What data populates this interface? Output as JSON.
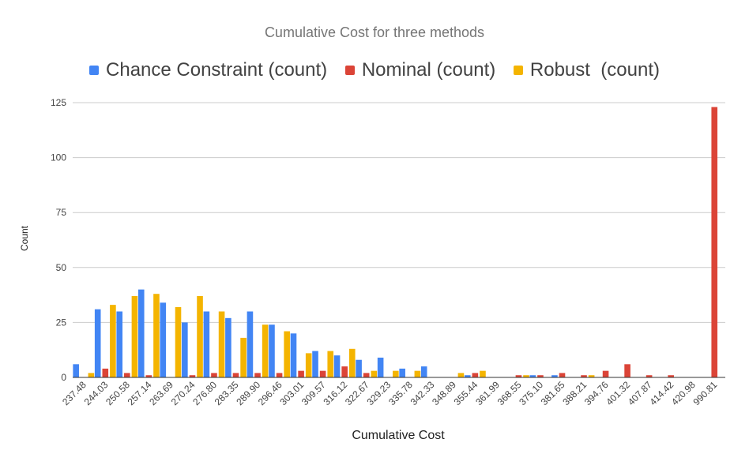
{
  "chart_data": {
    "type": "bar",
    "title": "Cumulative Cost for three methods",
    "xlabel": "Cumulative Cost",
    "ylabel": "Count",
    "ylim": [
      0,
      125
    ],
    "yticks": [
      0,
      25,
      50,
      75,
      100,
      125
    ],
    "grid": true,
    "legend_position": "top",
    "categories": [
      "237.48",
      "244.03",
      "250.58",
      "257.14",
      "263.69",
      "270.24",
      "276.80",
      "283.35",
      "289.90",
      "296.46",
      "303.01",
      "309.57",
      "316.12",
      "322.67",
      "329.23",
      "335.78",
      "342.33",
      "348.89",
      "355.44",
      "361.99",
      "368.55",
      "375.10",
      "381.65",
      "388.21",
      "394.76",
      "401.32",
      "407.87",
      "414.42",
      "420.98",
      "990.81"
    ],
    "series": [
      {
        "name": "Chance Constraint (count)",
        "color": "#4285f4",
        "values": [
          6,
          31,
          30,
          40,
          34,
          25,
          30,
          27,
          30,
          24,
          20,
          12,
          10,
          8,
          9,
          4,
          5,
          0,
          1,
          0,
          0,
          1,
          1,
          0,
          0,
          0,
          0,
          0,
          0,
          0
        ]
      },
      {
        "name": "Nominal (count)",
        "color": "#db4437",
        "values": [
          0,
          4,
          2,
          1,
          0,
          1,
          2,
          2,
          2,
          2,
          3,
          3,
          5,
          2,
          0,
          0,
          0,
          0,
          2,
          0,
          1,
          1,
          2,
          1,
          3,
          6,
          1,
          1,
          0,
          123
        ]
      },
      {
        "name": "Robust  (count)",
        "color": "#f4b400",
        "values": [
          2,
          33,
          37,
          38,
          32,
          37,
          30,
          18,
          24,
          21,
          11,
          12,
          13,
          3,
          3,
          3,
          0,
          2,
          3,
          0,
          1,
          0,
          0,
          1,
          0,
          0,
          0,
          0,
          0,
          0
        ]
      }
    ]
  }
}
